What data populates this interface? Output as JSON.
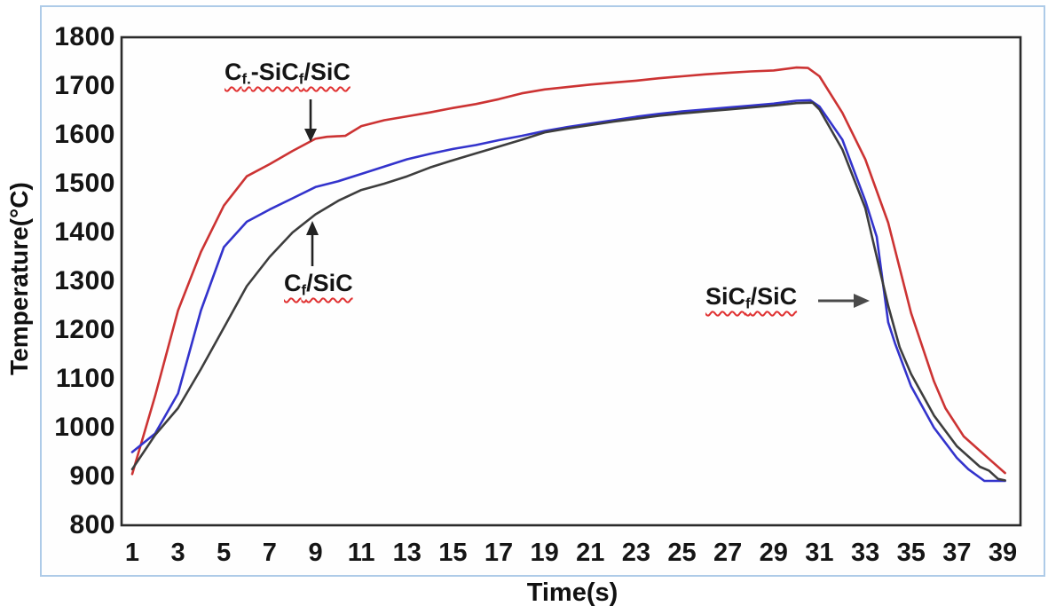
{
  "chart_data": {
    "type": "line",
    "title": "",
    "xlabel": "Time(s)",
    "ylabel": "Temperature(°C)",
    "xlim": [
      0.5,
      39.8
    ],
    "ylim": [
      800,
      1800
    ],
    "x_ticks": [
      1,
      3,
      5,
      7,
      9,
      11,
      13,
      15,
      17,
      19,
      21,
      23,
      25,
      27,
      29,
      31,
      33,
      35,
      37,
      39
    ],
    "y_ticks": [
      800,
      900,
      1000,
      1100,
      1200,
      1300,
      1400,
      1500,
      1600,
      1700,
      1800
    ],
    "grid": false,
    "legend_position": "none (inline annotations with arrows)",
    "annotation_underline_color": "#e03131",
    "series": [
      {
        "id": "cf-sicf-sic",
        "name": "Cf.-SiCf/SiC",
        "color": "#cc3333",
        "points": [
          [
            1,
            905
          ],
          [
            2,
            1065
          ],
          [
            3,
            1240
          ],
          [
            4,
            1360
          ],
          [
            5,
            1455
          ],
          [
            6,
            1515
          ],
          [
            7,
            1540
          ],
          [
            8,
            1567
          ],
          [
            9,
            1592
          ],
          [
            9.5,
            1596
          ],
          [
            10.3,
            1598
          ],
          [
            11,
            1618
          ],
          [
            12,
            1630
          ],
          [
            13,
            1638
          ],
          [
            14,
            1646
          ],
          [
            15,
            1655
          ],
          [
            16,
            1663
          ],
          [
            17,
            1673
          ],
          [
            18,
            1685
          ],
          [
            19,
            1693
          ],
          [
            20,
            1698
          ],
          [
            21,
            1703
          ],
          [
            22,
            1707
          ],
          [
            23,
            1711
          ],
          [
            24,
            1716
          ],
          [
            25,
            1720
          ],
          [
            26,
            1724
          ],
          [
            27,
            1727
          ],
          [
            28,
            1730
          ],
          [
            29,
            1732
          ],
          [
            30,
            1738
          ],
          [
            30.5,
            1737
          ],
          [
            31,
            1720
          ],
          [
            32,
            1645
          ],
          [
            33,
            1550
          ],
          [
            34,
            1420
          ],
          [
            35,
            1235
          ],
          [
            36,
            1095
          ],
          [
            36.5,
            1040
          ],
          [
            37.3,
            982
          ],
          [
            38.4,
            936
          ],
          [
            39.1,
            907
          ]
        ]
      },
      {
        "id": "sicf-sic",
        "name": "SiCf/SiC",
        "color": "#3333cc",
        "points": [
          [
            1,
            950
          ],
          [
            2,
            988
          ],
          [
            3,
            1070
          ],
          [
            4,
            1240
          ],
          [
            5,
            1370
          ],
          [
            6,
            1422
          ],
          [
            7,
            1447
          ],
          [
            8,
            1470
          ],
          [
            9,
            1493
          ],
          [
            10,
            1505
          ],
          [
            11,
            1520
          ],
          [
            12,
            1535
          ],
          [
            13,
            1550
          ],
          [
            14,
            1561
          ],
          [
            15,
            1571
          ],
          [
            16,
            1579
          ],
          [
            17,
            1589
          ],
          [
            18,
            1598
          ],
          [
            19,
            1608
          ],
          [
            20,
            1616
          ],
          [
            21,
            1623
          ],
          [
            22,
            1630
          ],
          [
            23,
            1637
          ],
          [
            24,
            1643
          ],
          [
            25,
            1648
          ],
          [
            26,
            1652
          ],
          [
            27,
            1656
          ],
          [
            28,
            1660
          ],
          [
            29,
            1664
          ],
          [
            30,
            1670
          ],
          [
            30.6,
            1671
          ],
          [
            31,
            1658
          ],
          [
            32,
            1590
          ],
          [
            33,
            1465
          ],
          [
            33.5,
            1391
          ],
          [
            34,
            1216
          ],
          [
            34.3,
            1173
          ],
          [
            35,
            1085
          ],
          [
            36,
            1000
          ],
          [
            37,
            938
          ],
          [
            37.5,
            915
          ],
          [
            38.2,
            891
          ],
          [
            39.1,
            891
          ]
        ]
      },
      {
        "id": "cf-sic",
        "name": "Cf/SiC",
        "color": "#3d3d3d",
        "points": [
          [
            1,
            915
          ],
          [
            2,
            985
          ],
          [
            3,
            1040
          ],
          [
            4,
            1120
          ],
          [
            5,
            1205
          ],
          [
            6,
            1290
          ],
          [
            7,
            1350
          ],
          [
            8,
            1400
          ],
          [
            9,
            1437
          ],
          [
            10,
            1465
          ],
          [
            11,
            1487
          ],
          [
            12,
            1500
          ],
          [
            13,
            1515
          ],
          [
            14,
            1533
          ],
          [
            15,
            1548
          ],
          [
            16,
            1562
          ],
          [
            17,
            1576
          ],
          [
            18,
            1590
          ],
          [
            19,
            1605
          ],
          [
            20,
            1613
          ],
          [
            21,
            1620
          ],
          [
            22,
            1627
          ],
          [
            23,
            1633
          ],
          [
            24,
            1639
          ],
          [
            25,
            1644
          ],
          [
            26,
            1648
          ],
          [
            27,
            1652
          ],
          [
            28,
            1656
          ],
          [
            29,
            1660
          ],
          [
            30,
            1665
          ],
          [
            30.7,
            1666
          ],
          [
            31,
            1652
          ],
          [
            32,
            1570
          ],
          [
            33,
            1450
          ],
          [
            34,
            1250
          ],
          [
            34.5,
            1165
          ],
          [
            35,
            1110
          ],
          [
            36,
            1025
          ],
          [
            37,
            962
          ],
          [
            38,
            920
          ],
          [
            38.4,
            912
          ],
          [
            38.8,
            895
          ],
          [
            39.1,
            892
          ]
        ]
      }
    ],
    "annotations": [
      {
        "text": "Cf.-SiCf/SiC",
        "segments": [
          {
            "text": "C"
          },
          {
            "text": "f.",
            "sub": true
          },
          {
            "text": "-SiC"
          },
          {
            "text": "f",
            "sub": true
          },
          {
            "text": "/SiC"
          }
        ],
        "arrow": "down",
        "target_series": "Cf.-SiCf/SiC",
        "target_point": {
          "t": 9,
          "temperature": 1590
        }
      },
      {
        "text": "Cf/SiC",
        "segments": [
          {
            "text": "C"
          },
          {
            "text": "f",
            "sub": true
          },
          {
            "text": "/SiC"
          }
        ],
        "arrow": "up",
        "target_series": "Cf/SiC",
        "target_point": {
          "t": 9,
          "temperature": 1435
        }
      },
      {
        "text": "SiCf/SiC",
        "segments": [
          {
            "text": "SiC"
          },
          {
            "text": "f",
            "sub": true
          },
          {
            "text": "/SiC"
          }
        ],
        "arrow": "right",
        "target_series": "SiCf/SiC",
        "target_point": {
          "t": 33.8,
          "temperature": 1260
        }
      }
    ]
  }
}
